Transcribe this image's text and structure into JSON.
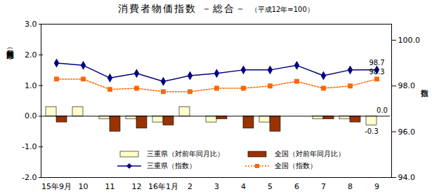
{
  "chart_data": {
    "type": "bar",
    "title": "消費者物価指数 －総合－",
    "subtitle": "（平成12年=100）",
    "y_label": "対前年同月比（％）",
    "y2_label": "指数",
    "categories": [
      "15年9月",
      "10",
      "11",
      "12",
      "16年1月",
      "2",
      "3",
      "4",
      "5",
      "6",
      "7",
      "8",
      "9"
    ],
    "ylim": [
      -2,
      3
    ],
    "yticks": [
      {
        "value": -2,
        "label": "-2.0"
      },
      {
        "value": -1,
        "label": "-1.0"
      },
      {
        "value": 0,
        "label": "0.0"
      },
      {
        "value": 1,
        "label": "1.0"
      },
      {
        "value": 2,
        "label": "2.0"
      },
      {
        "value": 3,
        "label": "3.0"
      }
    ],
    "y2lim": [
      94,
      100.7
    ],
    "y2ticks": [
      {
        "value": 94,
        "label": "94.0"
      },
      {
        "value": 96,
        "label": "96.0"
      },
      {
        "value": 98,
        "label": "98.0"
      },
      {
        "value": 100,
        "label": "100.0"
      }
    ],
    "grid": false,
    "legend": "bottom",
    "series": [
      {
        "name": "三重県（対前年同月比）",
        "type": "bar",
        "color": "#ffffcc",
        "values": [
          0.3,
          0.3,
          -0.1,
          -0.1,
          -0.2,
          0.3,
          -0.2,
          0.0,
          -0.2,
          0.0,
          -0.1,
          -0.1,
          -0.3
        ],
        "value_labels": [
          null,
          null,
          null,
          null,
          null,
          null,
          null,
          null,
          null,
          null,
          null,
          null,
          "-0.3"
        ]
      },
      {
        "name": "全国（対前年同月比）",
        "type": "bar",
        "color": "#993300",
        "values": [
          -0.2,
          0.0,
          -0.5,
          -0.4,
          -0.3,
          0.0,
          -0.1,
          -0.4,
          -0.5,
          0.0,
          -0.1,
          -0.2,
          0.0
        ],
        "value_labels": [
          null,
          null,
          null,
          null,
          null,
          null,
          null,
          null,
          null,
          null,
          null,
          null,
          "0.0"
        ]
      },
      {
        "name": "三重県（指数）",
        "type": "line",
        "axis": "y2",
        "color": "#000080",
        "marker": "diamond",
        "line_style": "solid",
        "values": [
          99.0,
          98.9,
          98.35,
          98.55,
          98.2,
          98.45,
          98.55,
          98.7,
          98.7,
          98.9,
          98.45,
          98.7,
          98.7
        ],
        "value_labels": [
          null,
          null,
          null,
          null,
          null,
          null,
          null,
          null,
          null,
          null,
          null,
          null,
          "98.7"
        ]
      },
      {
        "name": "全国（指数）",
        "type": "line",
        "axis": "y2",
        "color": "#ff6600",
        "marker": "square",
        "line_style": "dotted",
        "values": [
          98.3,
          98.3,
          97.85,
          97.9,
          97.75,
          97.75,
          97.9,
          97.9,
          98.0,
          98.2,
          97.9,
          98.0,
          98.3
        ],
        "value_labels": [
          null,
          null,
          null,
          null,
          null,
          null,
          null,
          null,
          null,
          null,
          null,
          null,
          "98.3"
        ]
      }
    ]
  }
}
